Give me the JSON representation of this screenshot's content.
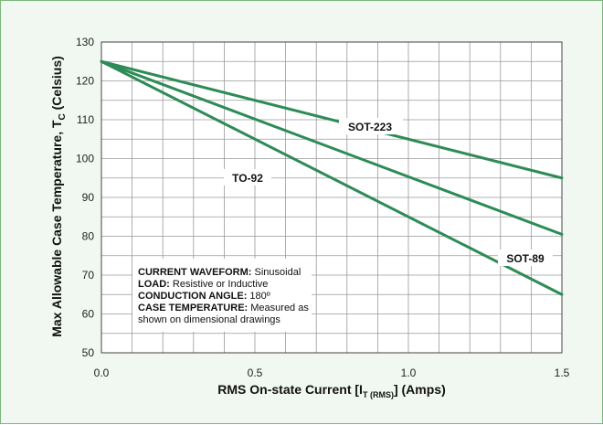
{
  "chart_data": {
    "type": "line",
    "ylabel_main": "Max Allowable Case Temperature, T",
    "ylabel_sub": "C",
    "ylabel_unit": "(Celsius)",
    "xlabel_main": "RMS On-state Current [I",
    "xlabel_sub": "T (RMS)",
    "xlabel_unit": "] (Amps)",
    "xlim": [
      0,
      1.5
    ],
    "ylim": [
      50,
      130
    ],
    "x_ticks": [
      0.0,
      0.5,
      1.0,
      1.5
    ],
    "x_tick_labels": [
      "0.0",
      "0.5",
      "1.0",
      "1.5"
    ],
    "x_minor_step": 0.1,
    "y_ticks": [
      50,
      60,
      70,
      80,
      90,
      100,
      110,
      120,
      130
    ],
    "y_tick_labels": [
      "50",
      "60",
      "70",
      "80",
      "90",
      "100",
      "110",
      "120",
      "130"
    ],
    "y_minor_step": 5,
    "grid": true,
    "line_color": "#2e8b57",
    "series": [
      {
        "name": "SOT-223",
        "x": [
          0.0,
          1.5
        ],
        "y": [
          125,
          95
        ]
      },
      {
        "name": "SOT-89",
        "x": [
          0.0,
          1.5
        ],
        "y": [
          125,
          80.5
        ]
      },
      {
        "name": "TO-92",
        "x": [
          0.0,
          1.5
        ],
        "y": [
          125,
          65
        ]
      }
    ],
    "annotations": {
      "sot223_label": "SOT-223",
      "sot89_label": "SOT-89",
      "to92_label": "TO-92"
    },
    "note_box": [
      {
        "key": "CURRENT WAVEFORM:",
        "value": " Sinusoidal"
      },
      {
        "key": "LOAD:",
        "value": " Resistive or Inductive"
      },
      {
        "key": "CONDUCTION ANGLE:",
        "value": " 180º"
      },
      {
        "key": "CASE TEMPERATURE:",
        "value": " Measured as"
      },
      {
        "key": "",
        "value": "shown on dimensional drawings"
      }
    ]
  }
}
